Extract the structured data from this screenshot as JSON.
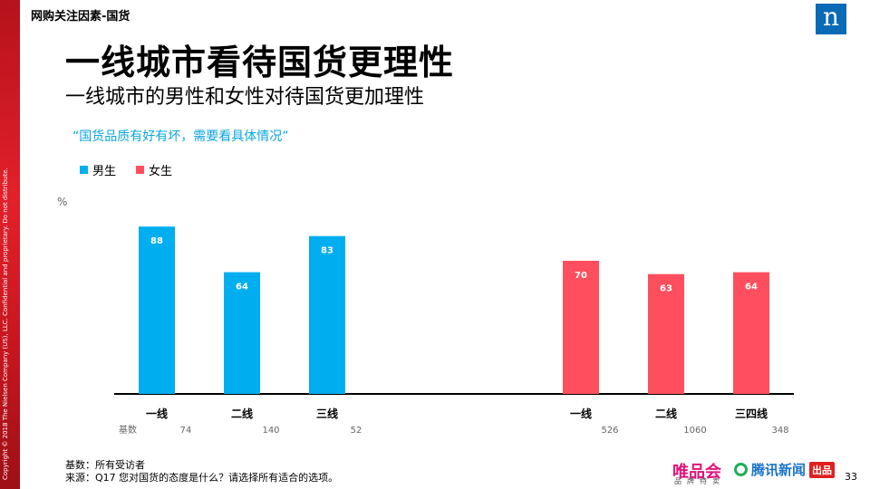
{
  "header": {
    "section": "网购关注因素-国货",
    "title": "一线城市看待国货更理性",
    "subtitle": "一线城市的男性和女性对待国货更加理性",
    "quote": "“国货品质有好有坏，需要看具体情况”",
    "logo_letter": "n"
  },
  "copyright": "Copyright © 2018 The Nielsen Company (US), LLC. Confidential and proprietary. Do not distribute.",
  "colors": {
    "male": "#00aeef",
    "female": "#ff4f5e"
  },
  "chart_data": {
    "type": "bar",
    "unit_label": "%",
    "ylim": [
      0,
      100
    ],
    "grid": false,
    "legend": "top-left",
    "base_label": "基数",
    "series": [
      {
        "name": "男生",
        "categories": [
          "一线",
          "二线",
          "三线"
        ],
        "values": [
          88,
          64,
          83
        ],
        "bases": [
          "74",
          "140",
          "52"
        ]
      },
      {
        "name": "女生",
        "categories": [
          "一线",
          "二线",
          "三四线"
        ],
        "values": [
          70,
          63,
          64
        ],
        "bases": [
          "526",
          "1060",
          "348"
        ]
      }
    ]
  },
  "footer": {
    "base_note": "基数：所有受访者",
    "source_note": "来源：Q17 您对国货的态度是什么？请选择所有适合的选项。",
    "brand_vip": "唯品会",
    "brand_vip_sub": "品牌特卖",
    "brand_tencent": "腾讯新闻",
    "brand_tencent_tag": "出品",
    "page_number": "33"
  }
}
